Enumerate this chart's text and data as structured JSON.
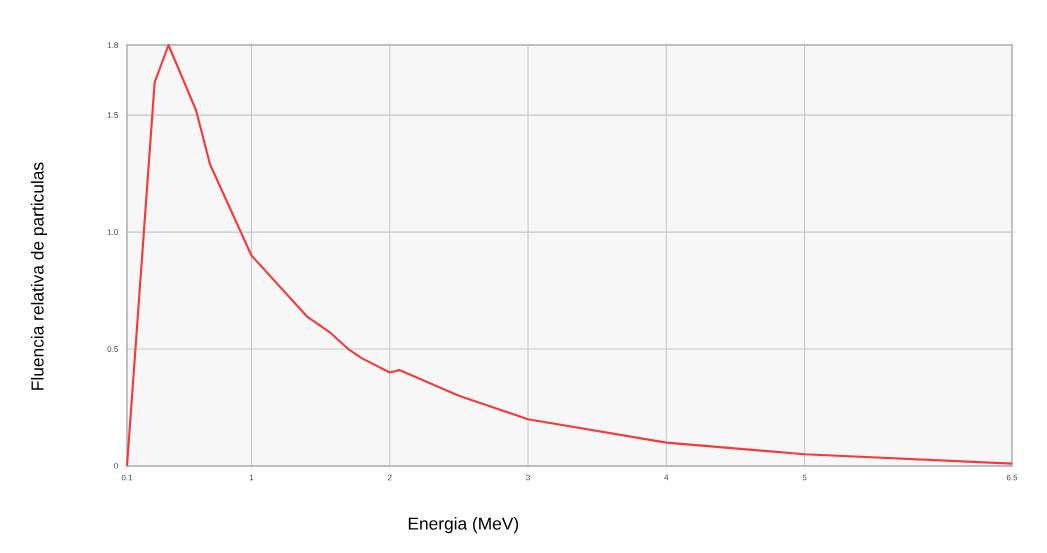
{
  "chart_data": {
    "type": "line",
    "xlabel": "Energia (MeV)",
    "ylabel": "Fluencia relativa de particulas",
    "x": [
      0.1,
      0.3,
      0.4,
      0.6,
      0.7,
      1.0,
      1.2,
      1.4,
      1.57,
      1.7,
      1.8,
      2.0,
      2.07,
      2.5,
      3.0,
      4.0,
      5.0,
      6.5
    ],
    "series": [
      {
        "color": "#f03c3c",
        "values": [
          0,
          1.64,
          1.8,
          1.52,
          1.29,
          0.9,
          0.77,
          0.64,
          0.57,
          0.5,
          0.46,
          0.4,
          0.41,
          0.3,
          0.2,
          0.1,
          0.05,
          0.01
        ]
      }
    ],
    "xlim": [
      0.1,
      6.5
    ],
    "ylim": [
      0,
      1.8
    ],
    "xticks": [
      0.1,
      1,
      2,
      3,
      4,
      5,
      6.5
    ],
    "yticks": [
      0,
      0.5,
      {
        "value": 1,
        "label": "1.0"
      },
      1.5,
      1.8
    ],
    "grid": true,
    "marker": "none",
    "line_style": "solid"
  }
}
